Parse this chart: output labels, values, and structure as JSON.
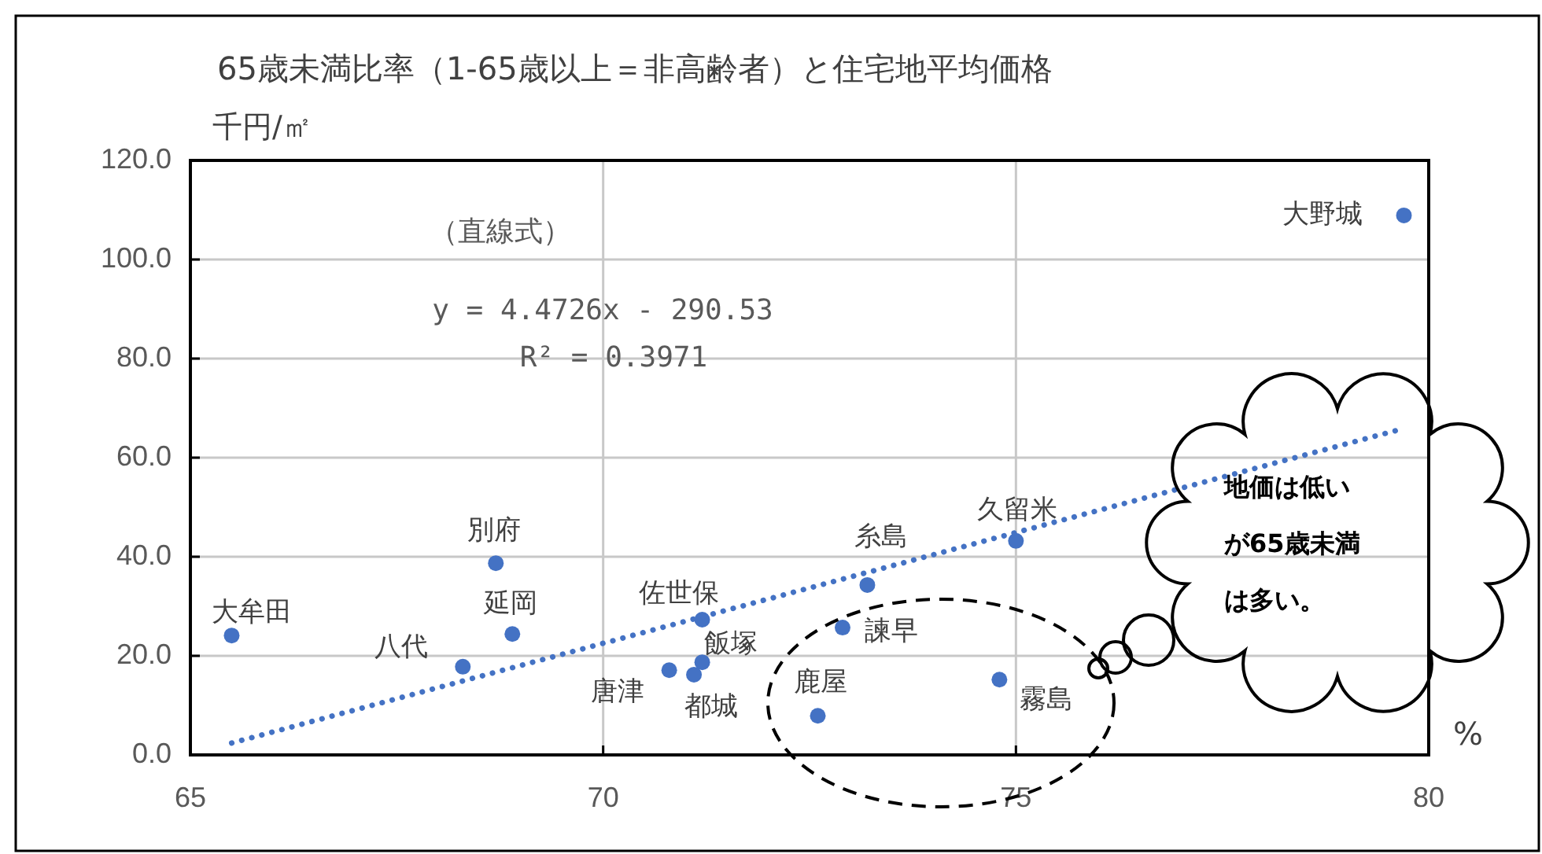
{
  "chart_data": {
    "type": "scatter",
    "title": "65歳未満比率（1-65歳以上＝非高齢者）と住宅地平均価格",
    "ylabel": "千円/㎡",
    "xlabel": "%",
    "xlim": [
      65,
      80
    ],
    "xticks": [
      65,
      70,
      75,
      80
    ],
    "ylim": [
      0,
      120
    ],
    "yticks": [
      {
        "value": 0,
        "label": "0.0"
      },
      {
        "value": 20,
        "label": "20.0"
      },
      {
        "value": 40,
        "label": "40.0"
      },
      {
        "value": 60,
        "label": "60.0"
      },
      {
        "value": 80,
        "label": "80.0"
      },
      {
        "value": 100,
        "label": "100.0"
      },
      {
        "value": 120,
        "label": "120.0"
      }
    ],
    "grid": true,
    "series": [
      {
        "color": "#4472c4",
        "marker": "circle",
        "x": [
          65.5,
          68.3,
          68.7,
          68.9,
          70.8,
          71.1,
          71.2,
          71.2,
          72.9,
          73.2,
          72.6,
          74.8,
          75.0,
          79.7
        ],
        "values": [
          24.1,
          17.8,
          38.7,
          24.4,
          17.1,
          16.2,
          18.7,
          27.3,
          25.7,
          34.3,
          7.9,
          15.2,
          43.2,
          108.9
        ]
      },
      {
        "type": "line",
        "color": "#4472c4",
        "line_style": "dotted",
        "x": [
          65.5,
          79.7
        ],
        "values": [
          2.4,
          65.9
        ]
      }
    ],
    "annotations": [
      {
        "text": "大牟田",
        "x": 65.5,
        "y": 24.1
      },
      {
        "text": "八代",
        "x": 68.3,
        "y": 17.8
      },
      {
        "text": "別府",
        "x": 68.7,
        "y": 38.7
      },
      {
        "text": "延岡",
        "x": 68.9,
        "y": 24.4
      },
      {
        "text": "唐津",
        "x": 70.8,
        "y": 17.1
      },
      {
        "text": "都城",
        "x": 71.1,
        "y": 16.2
      },
      {
        "text": "飯塚",
        "x": 71.2,
        "y": 18.7
      },
      {
        "text": "佐世保",
        "x": 71.2,
        "y": 27.3
      },
      {
        "text": "諫早",
        "x": 72.9,
        "y": 25.7
      },
      {
        "text": "糸島",
        "x": 73.2,
        "y": 34.3
      },
      {
        "text": "鹿屋",
        "x": 72.6,
        "y": 7.9
      },
      {
        "text": "霧島",
        "x": 74.8,
        "y": 15.2
      },
      {
        "text": "久留米",
        "x": 75.0,
        "y": 43.2
      },
      {
        "text": "大野城",
        "x": 79.7,
        "y": 108.9
      },
      "（直線式）",
      "y = 4.4726x - 290.53",
      "R² = 0.3971",
      "地価は低いが65歳未満は多い。"
    ]
  }
}
